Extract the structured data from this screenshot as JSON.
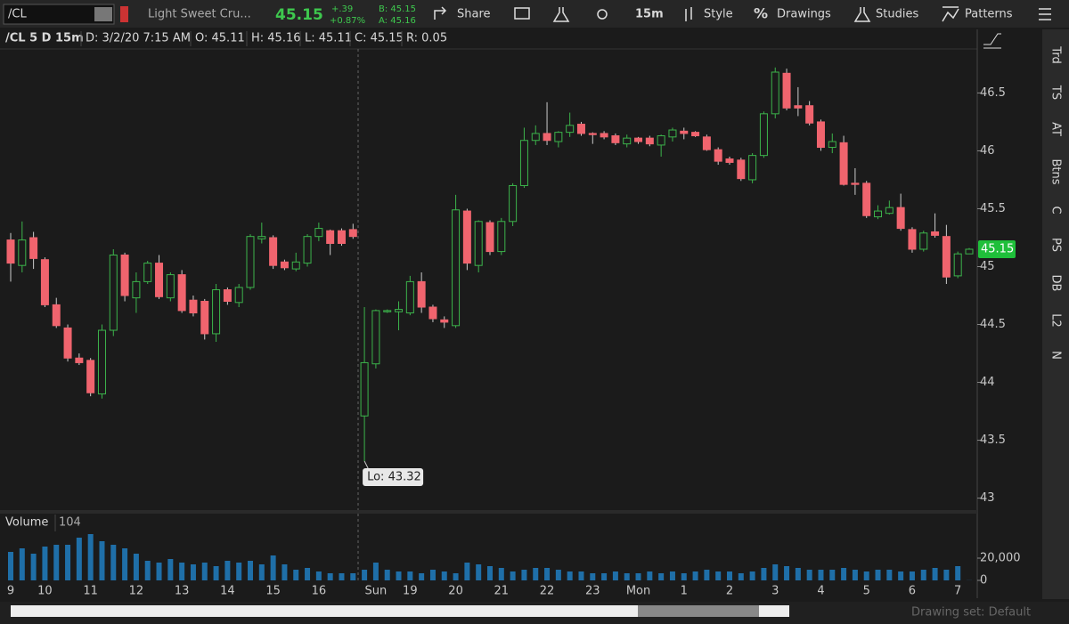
{
  "toolbar": {
    "symbol": "/CL",
    "description": "Light Sweet Cru...",
    "last": "45.15",
    "change": "+.39",
    "change_pct": "+0.87%",
    "bid": "B: 45.15",
    "ask": "A: 45.16",
    "share": "Share",
    "interval": "15m",
    "style": "Style",
    "drawings": "Drawings",
    "studies": "Studies",
    "patterns": "Patterns"
  },
  "header": [
    "/CL 5 D 15m",
    "D: 3/2/20 7:15 AM",
    "O: 45.11",
    "H: 45.16",
    "L: 45.11",
    "C: 45.15",
    "R: 0.05"
  ],
  "chart_data": [
    {
      "type": "candlestick",
      "categories": [
        "9",
        null,
        null,
        "10",
        null,
        null,
        null,
        "11",
        null,
        null,
        null,
        "12",
        null,
        null,
        null,
        "13",
        null,
        null,
        null,
        "14",
        null,
        null,
        null,
        "15",
        null,
        null,
        null,
        "16",
        null,
        null,
        null,
        null,
        "Sun",
        null,
        null,
        "19",
        null,
        null,
        null,
        "20",
        null,
        null,
        null,
        "21",
        null,
        null,
        null,
        "22",
        null,
        null,
        null,
        "23",
        null,
        null,
        null,
        "Mon",
        null,
        null,
        null,
        "1",
        null,
        null,
        null,
        "2",
        null,
        null,
        null,
        "3",
        null,
        null,
        null,
        "4",
        null,
        null,
        null,
        "5",
        null,
        null,
        null,
        "6",
        null,
        null,
        null,
        "7",
        null
      ],
      "open": [
        45.23,
        45.01,
        45.25,
        45.06,
        44.67,
        44.47,
        44.21,
        44.19,
        43.9,
        44.45,
        45.1,
        44.73,
        44.87,
        45.03,
        44.73,
        44.93,
        44.71,
        44.7,
        44.42,
        44.8,
        44.69,
        44.82,
        45.24,
        45.25,
        45.04,
        44.98,
        45.03,
        45.26,
        45.31,
        45.31,
        45.32,
        43.71,
        44.16,
        44.61,
        44.61,
        44.6,
        44.87,
        44.65,
        44.54,
        44.49,
        45.48,
        45.01,
        45.38,
        45.13,
        45.39,
        45.7,
        46.09,
        46.15,
        46.08,
        46.16,
        46.23,
        46.15,
        46.15,
        46.13,
        46.06,
        46.11,
        46.11,
        46.05,
        46.12,
        46.17,
        46.16,
        46.12,
        46.01,
        45.93,
        45.92,
        45.75,
        45.96,
        46.32,
        46.67,
        46.39,
        46.39,
        46.25,
        46.03,
        46.07,
        45.72,
        45.72,
        45.43,
        45.46,
        45.51,
        45.32,
        45.15,
        45.3,
        45.26,
        44.92,
        45.11
      ],
      "high": [
        45.29,
        45.39,
        45.3,
        45.08,
        44.73,
        44.5,
        44.25,
        44.21,
        44.5,
        45.15,
        45.12,
        44.95,
        45.05,
        45.1,
        44.95,
        44.97,
        44.75,
        44.72,
        44.85,
        44.82,
        44.85,
        45.28,
        45.38,
        45.27,
        45.06,
        45.12,
        45.28,
        45.38,
        45.32,
        45.33,
        45.37,
        44.65,
        44.63,
        44.63,
        44.7,
        44.92,
        44.95,
        44.67,
        44.57,
        45.62,
        45.5,
        45.4,
        45.4,
        45.42,
        45.72,
        46.2,
        46.22,
        46.42,
        46.17,
        46.33,
        46.25,
        46.16,
        46.17,
        46.15,
        46.14,
        46.12,
        46.13,
        46.14,
        46.2,
        46.2,
        46.17,
        46.14,
        46.03,
        45.95,
        45.94,
        45.98,
        46.34,
        46.72,
        46.71,
        46.55,
        46.43,
        46.27,
        46.15,
        46.13,
        45.85,
        45.74,
        45.53,
        45.57,
        45.63,
        45.34,
        45.31,
        45.46,
        45.36,
        45.13,
        45.16
      ],
      "low": [
        44.87,
        44.95,
        44.98,
        44.65,
        44.47,
        44.18,
        44.15,
        43.88,
        43.86,
        44.4,
        44.7,
        44.6,
        44.85,
        44.72,
        44.7,
        44.6,
        44.57,
        44.37,
        44.35,
        44.67,
        44.65,
        44.8,
        45.2,
        44.98,
        44.97,
        44.96,
        45.0,
        45.22,
        45.1,
        45.18,
        45.24,
        43.32,
        44.12,
        44.6,
        44.45,
        44.58,
        44.6,
        44.52,
        44.47,
        44.47,
        44.97,
        44.95,
        45.1,
        45.1,
        45.35,
        45.68,
        46.05,
        46.05,
        46.03,
        46.12,
        46.13,
        46.06,
        46.1,
        46.05,
        46.03,
        46.06,
        46.04,
        45.95,
        46.08,
        46.1,
        46.12,
        46.0,
        45.88,
        45.88,
        45.74,
        45.72,
        45.94,
        46.28,
        46.35,
        46.3,
        46.22,
        46.0,
        45.98,
        45.7,
        45.62,
        45.42,
        45.41,
        45.45,
        45.31,
        45.12,
        45.13,
        45.25,
        44.85,
        44.9,
        45.11
      ],
      "close": [
        45.03,
        45.23,
        45.07,
        44.67,
        44.49,
        44.21,
        44.17,
        43.91,
        44.45,
        45.1,
        44.75,
        44.87,
        45.03,
        44.74,
        44.93,
        44.62,
        44.6,
        44.42,
        44.8,
        44.7,
        44.82,
        45.26,
        45.26,
        45.01,
        44.99,
        45.04,
        45.26,
        45.33,
        45.2,
        45.2,
        45.26,
        44.17,
        44.62,
        44.62,
        44.63,
        44.87,
        44.65,
        44.55,
        44.52,
        45.49,
        45.03,
        45.39,
        45.13,
        45.39,
        45.7,
        46.09,
        46.15,
        46.09,
        46.16,
        46.22,
        46.15,
        46.14,
        46.12,
        46.07,
        46.11,
        46.08,
        46.06,
        46.13,
        46.18,
        46.15,
        46.13,
        46.01,
        45.91,
        45.9,
        45.76,
        45.96,
        46.32,
        46.68,
        46.37,
        46.37,
        46.24,
        46.03,
        46.08,
        45.71,
        45.71,
        45.44,
        45.48,
        45.51,
        45.33,
        45.15,
        45.29,
        45.27,
        44.91,
        45.11,
        45.15
      ],
      "up_color": "#3cb44b",
      "down_color": "#f0646e",
      "ylim": [
        42.92,
        46.88
      ],
      "yticks": [
        43,
        43.5,
        44,
        44.5,
        45,
        45.5,
        46,
        46.5
      ],
      "annotation": "Lo: 43.32"
    },
    {
      "type": "bar",
      "title": "Volume",
      "color": "#1f6fa8",
      "values": [
        25600,
        28800,
        24000,
        30400,
        32000,
        32000,
        38400,
        41600,
        35200,
        32000,
        28800,
        24000,
        17600,
        16000,
        19200,
        16000,
        14400,
        16000,
        12800,
        17600,
        16000,
        17600,
        14400,
        22400,
        14400,
        9600,
        11200,
        8000,
        6400,
        6400,
        6400,
        9600,
        16000,
        9600,
        8000,
        8000,
        6400,
        9600,
        8000,
        6400,
        16000,
        14400,
        12800,
        11200,
        8000,
        9600,
        11200,
        11200,
        9600,
        8000,
        8000,
        6400,
        6400,
        8000,
        6400,
        6400,
        8000,
        6400,
        8000,
        6400,
        8000,
        9600,
        8000,
        8000,
        6400,
        8000,
        11200,
        14400,
        12800,
        11200,
        9600,
        9600,
        9600,
        11200,
        9600,
        8000,
        9600,
        9600,
        8000,
        8000,
        9600,
        11200,
        9600,
        12800,
        104
      ],
      "ylim": [
        0,
        41600
      ],
      "yticks": [
        {
          "value": 20000,
          "label": "20,000"
        },
        0
      ]
    }
  ],
  "sidebar_tabs": [
    "Trd",
    "TS",
    "AT",
    "Btns",
    "C",
    "PS",
    "DB",
    "L2",
    "N"
  ],
  "footer": {
    "drawing_set": "Drawing set: Default"
  }
}
